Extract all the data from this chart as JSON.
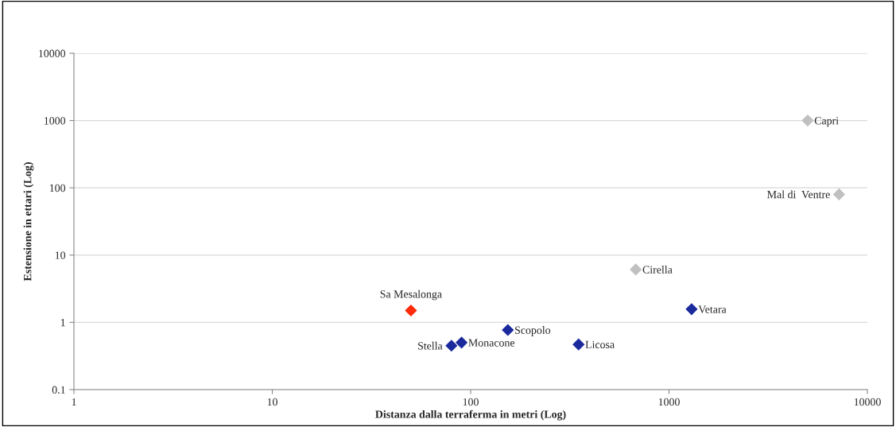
{
  "chart_data": {
    "type": "scatter",
    "xlabel": "Distanza dalla terraferma in metri (Log)",
    "ylabel": "Estensione in ettari (Log)",
    "log": "xy",
    "xlim": [
      1,
      10000
    ],
    "ylim": [
      0.1,
      10000
    ],
    "xticks": [
      1,
      10,
      100,
      1000,
      10000
    ],
    "yticks": [
      0.1,
      1,
      10,
      100,
      1000,
      10000
    ],
    "grid": "y",
    "legend": false,
    "marker": "diamond",
    "series": [
      {
        "name": "Capri",
        "color": "#c0c0c0",
        "x": [
          5000
        ],
        "values": [
          1000
        ]
      },
      {
        "name": "Mal di  Ventre",
        "color": "#c0c0c0",
        "x": [
          7200
        ],
        "values": [
          80
        ]
      },
      {
        "name": "Cirella",
        "color": "#c0c0c0",
        "x": [
          680
        ],
        "values": [
          6.1
        ]
      },
      {
        "name": "Vetara",
        "color": "#1a2a9c",
        "x": [
          1300
        ],
        "values": [
          1.57
        ]
      },
      {
        "name": "Sa Mesalonga",
        "color": "#ff2a0a",
        "x": [
          50
        ],
        "values": [
          1.5
        ]
      },
      {
        "name": "Scopolo",
        "color": "#1a2a9c",
        "x": [
          154
        ],
        "values": [
          0.77
        ]
      },
      {
        "name": "Stella",
        "color": "#1a2a9c",
        "x": [
          80
        ],
        "values": [
          0.45
        ]
      },
      {
        "name": "Monacone",
        "color": "#1a2a9c",
        "x": [
          90
        ],
        "values": [
          0.5
        ]
      },
      {
        "name": "Licosa",
        "color": "#1a2a9c",
        "x": [
          350
        ],
        "values": [
          0.47
        ]
      }
    ]
  }
}
